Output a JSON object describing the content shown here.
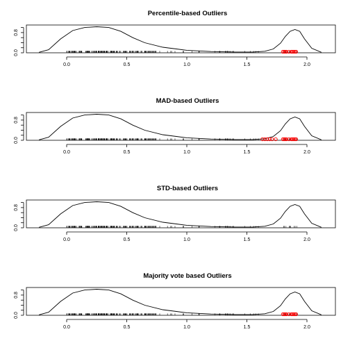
{
  "figure": {
    "background": "#ffffff",
    "curve_color": "#000000",
    "outlier_color": "#ff0000"
  },
  "chart_data": [
    {
      "type": "line",
      "title": "Percentile-based Outliers",
      "xlim": [
        -0.3,
        2.2
      ],
      "ylim": [
        0,
        1.1
      ],
      "x_ticks": [
        "0.0",
        "0.5",
        "1.0",
        "1.5",
        "2.0"
      ],
      "y_ticks": [
        "0.0",
        "0.8"
      ],
      "density": {
        "x": [
          -0.23,
          -0.15,
          -0.05,
          0.05,
          0.15,
          0.25,
          0.35,
          0.45,
          0.55,
          0.65,
          0.8,
          1.0,
          1.2,
          1.4,
          1.55,
          1.65,
          1.72,
          1.78,
          1.82,
          1.86,
          1.9,
          1.94,
          1.98,
          2.04,
          2.12
        ],
        "y": [
          0.02,
          0.12,
          0.55,
          0.88,
          1.0,
          1.03,
          1.0,
          0.85,
          0.6,
          0.4,
          0.22,
          0.1,
          0.05,
          0.03,
          0.03,
          0.06,
          0.15,
          0.38,
          0.65,
          0.85,
          0.92,
          0.85,
          0.55,
          0.18,
          0.02
        ]
      },
      "outliers": [
        1.8,
        1.81,
        1.82,
        1.83,
        1.85,
        1.87,
        1.88,
        1.89,
        1.9,
        1.91
      ]
    },
    {
      "type": "line",
      "title": "MAD-based Outliers",
      "xlim": [
        -0.3,
        2.2
      ],
      "ylim": [
        0,
        1.1
      ],
      "x_ticks": [
        "0.0",
        "0.5",
        "1.0",
        "1.5",
        "2.0"
      ],
      "y_ticks": [
        "0.0",
        "0.8"
      ],
      "density": {
        "x": [
          -0.23,
          -0.15,
          -0.05,
          0.05,
          0.15,
          0.25,
          0.35,
          0.45,
          0.55,
          0.65,
          0.8,
          1.0,
          1.2,
          1.4,
          1.55,
          1.65,
          1.72,
          1.78,
          1.82,
          1.86,
          1.9,
          1.94,
          1.98,
          2.04,
          2.12
        ],
        "y": [
          0.02,
          0.12,
          0.55,
          0.88,
          1.0,
          1.03,
          1.0,
          0.85,
          0.6,
          0.4,
          0.22,
          0.1,
          0.05,
          0.03,
          0.03,
          0.06,
          0.15,
          0.38,
          0.65,
          0.85,
          0.92,
          0.85,
          0.55,
          0.18,
          0.02
        ]
      },
      "outliers": [
        1.63,
        1.65,
        1.67,
        1.69,
        1.71,
        1.74,
        1.8,
        1.81,
        1.82,
        1.83,
        1.85,
        1.87,
        1.88,
        1.89,
        1.9,
        1.91
      ]
    },
    {
      "type": "line",
      "title": "STD-based Outliers",
      "xlim": [
        -0.3,
        2.2
      ],
      "ylim": [
        0,
        1.1
      ],
      "x_ticks": [
        "0.0",
        "0.5",
        "1.0",
        "1.5",
        "2.0"
      ],
      "y_ticks": [
        "0.0",
        "0.8"
      ],
      "density": {
        "x": [
          -0.23,
          -0.15,
          -0.05,
          0.05,
          0.15,
          0.25,
          0.35,
          0.45,
          0.55,
          0.65,
          0.8,
          1.0,
          1.2,
          1.4,
          1.55,
          1.65,
          1.72,
          1.78,
          1.82,
          1.86,
          1.9,
          1.94,
          1.98,
          2.04,
          2.12
        ],
        "y": [
          0.02,
          0.12,
          0.55,
          0.88,
          1.0,
          1.03,
          1.0,
          0.85,
          0.6,
          0.4,
          0.22,
          0.1,
          0.05,
          0.03,
          0.03,
          0.06,
          0.15,
          0.38,
          0.65,
          0.85,
          0.92,
          0.85,
          0.55,
          0.18,
          0.02
        ]
      },
      "outliers": []
    },
    {
      "type": "line",
      "title": "Majority vote based Outliers",
      "xlim": [
        -0.3,
        2.2
      ],
      "ylim": [
        0,
        1.1
      ],
      "x_ticks": [
        "0.0",
        "0.5",
        "1.0",
        "1.5",
        "2.0"
      ],
      "y_ticks": [
        "0.0",
        "0.8"
      ],
      "density": {
        "x": [
          -0.23,
          -0.15,
          -0.05,
          0.05,
          0.15,
          0.25,
          0.35,
          0.45,
          0.55,
          0.65,
          0.8,
          1.0,
          1.2,
          1.4,
          1.55,
          1.65,
          1.72,
          1.78,
          1.82,
          1.86,
          1.9,
          1.94,
          1.98,
          2.04,
          2.12
        ],
        "y": [
          0.02,
          0.12,
          0.55,
          0.88,
          1.0,
          1.03,
          1.0,
          0.85,
          0.6,
          0.4,
          0.22,
          0.1,
          0.05,
          0.03,
          0.03,
          0.06,
          0.15,
          0.38,
          0.65,
          0.85,
          0.92,
          0.85,
          0.55,
          0.18,
          0.02
        ]
      },
      "outliers": [
        1.8,
        1.81,
        1.82,
        1.83,
        1.85,
        1.87,
        1.88,
        1.89,
        1.9,
        1.91
      ]
    }
  ]
}
